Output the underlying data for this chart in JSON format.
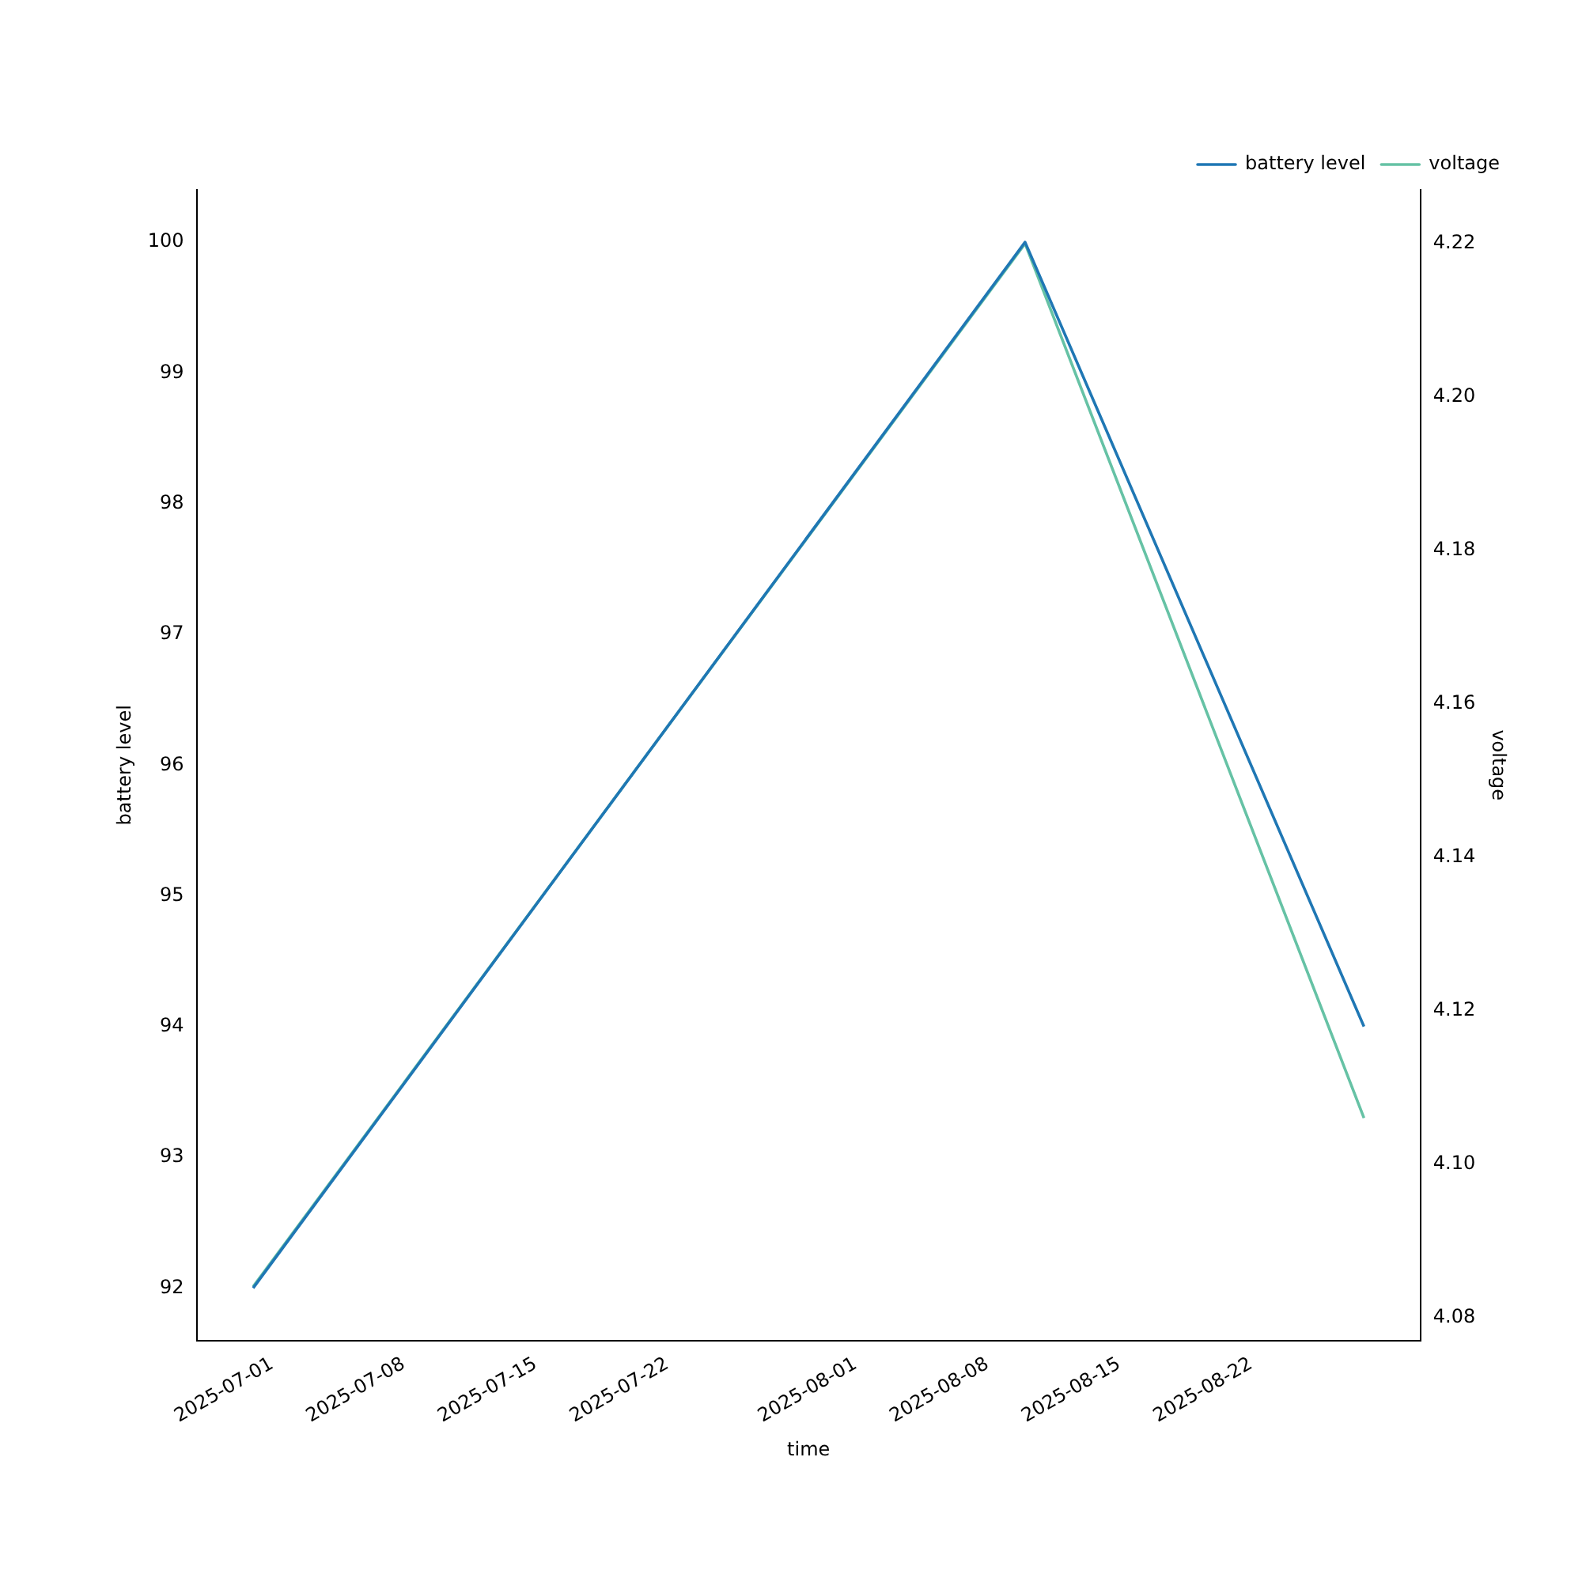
{
  "chart_data": {
    "type": "line",
    "xlabel": "time",
    "ylabel": "battery level",
    "y2label": "voltage",
    "x": [
      "2025-06-30",
      "2025-08-10",
      "2025-08-28"
    ],
    "series": [
      {
        "name": "battery level",
        "color": "#1f77b4",
        "values": [
          92,
          100,
          94
        ]
      },
      {
        "name": "voltage",
        "color": "#66c2a5",
        "values": [
          4.084,
          4.22,
          4.106
        ],
        "axis": "y2"
      }
    ],
    "xlim": [
      "2025-06-27",
      "2025-08-31"
    ],
    "xticks": [
      "2025-07-01",
      "2025-07-08",
      "2025-07-15",
      "2025-07-22",
      "2025-08-01",
      "2025-08-08",
      "2025-08-15",
      "2025-08-22"
    ],
    "ylim": [
      91.6,
      100.4
    ],
    "yticks": [
      92,
      93,
      94,
      95,
      96,
      97,
      98,
      99,
      100
    ],
    "y2lim": [
      4.077,
      4.227
    ],
    "y2ticks": [
      4.08,
      {
        "value": 4.1,
        "label": "4.10"
      },
      4.12,
      4.14,
      4.16,
      4.18,
      {
        "value": 4.2,
        "label": "4.20"
      },
      4.22
    ],
    "legend": "top right",
    "grid": false,
    "marker": "none",
    "line_style": "solid"
  }
}
